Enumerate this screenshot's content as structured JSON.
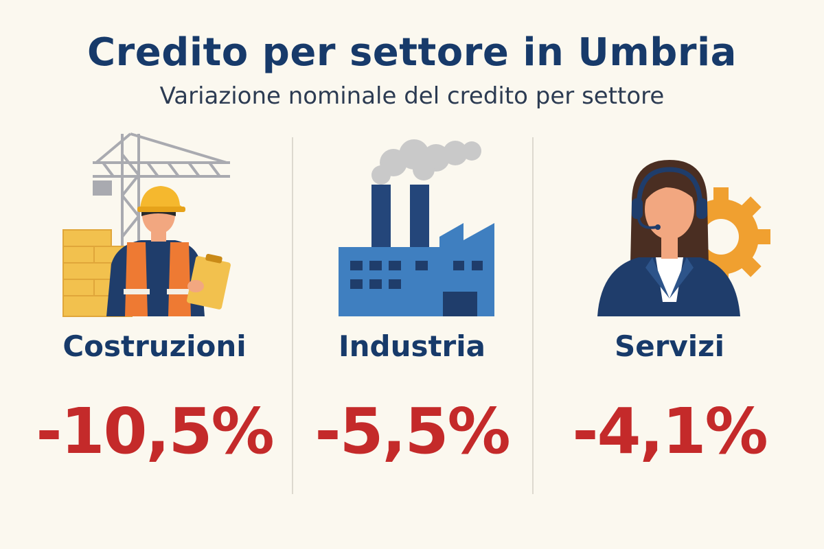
{
  "header": {
    "title": "Credito per settore in Umbria",
    "subtitle": "Variazione nominale del credito per settore"
  },
  "sectors": [
    {
      "label": "Costruzioni",
      "value": "-10,5%",
      "icon": "construction-worker-icon"
    },
    {
      "label": "Industria",
      "value": "-5,5%",
      "icon": "factory-icon"
    },
    {
      "label": "Servizi",
      "value": "-4,1%",
      "icon": "call-center-operator-icon"
    }
  ],
  "colors": {
    "background": "#fbf8ef",
    "title": "#173a6a",
    "value": "#c42a2a",
    "accent_orange": "#f0a030",
    "factory_blue": "#3f7fc0"
  }
}
